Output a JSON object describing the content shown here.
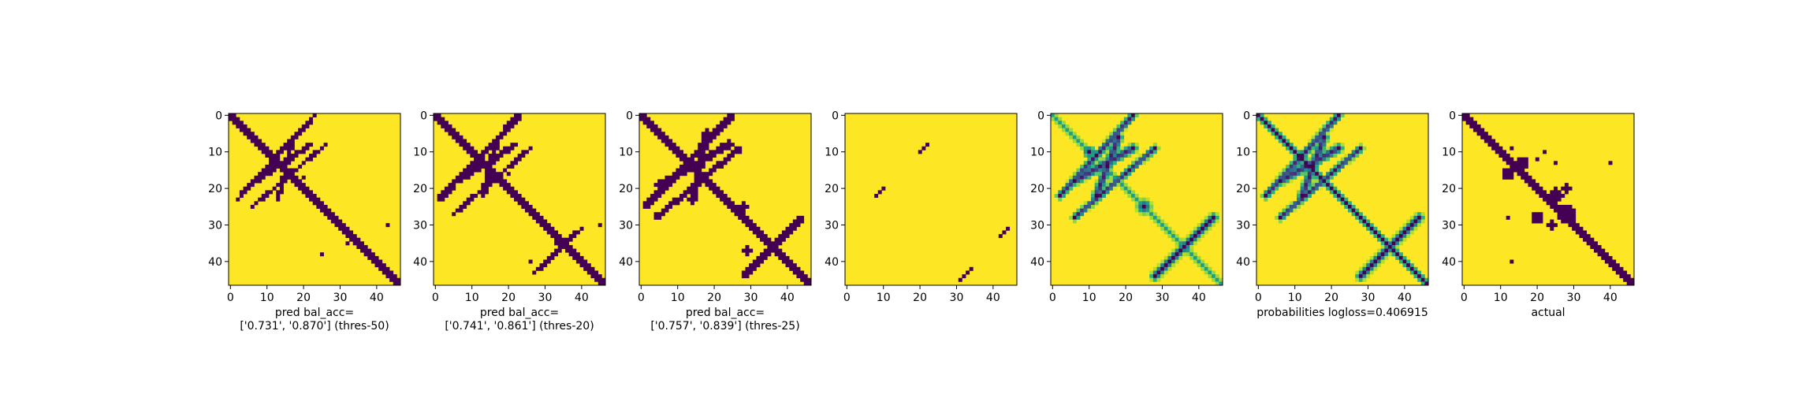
{
  "chart_data": [
    {
      "type": "heatmap",
      "name": "threshold-50-map",
      "caption": [
        "pred bal_acc=",
        "['0.731', '0.870'] (thres-50)"
      ],
      "size": 47,
      "render": "binary",
      "diag_width": 1.6,
      "curves": [
        [
          18,
          7,
          8,
          22,
          0,
          1.0
        ],
        [
          7,
          17,
          23,
          13,
          0,
          1.0
        ],
        [
          23,
          2,
          0,
          23,
          0,
          1.0
        ],
        [
          25,
          6,
          8,
          26,
          0,
          0.8
        ]
      ],
      "squares": [
        [
          38,
          25,
          1.5
        ],
        [
          35,
          32,
          1.5
        ],
        [
          30,
          43,
          1.5
        ],
        [
          17,
          20,
          1.5
        ]
      ],
      "xticks": [
        0,
        10,
        20,
        30,
        40
      ],
      "yticks": [
        0,
        10,
        20,
        30,
        40
      ]
    },
    {
      "type": "heatmap",
      "name": "threshold-20-map",
      "caption": [
        "pred bal_acc=",
        "['0.741', '0.861'] (thres-20)"
      ],
      "size": 47,
      "render": "binary",
      "diag_width": 1.7,
      "curves": [
        [
          18,
          6,
          8,
          22,
          0,
          1.3
        ],
        [
          6,
          17,
          22,
          13,
          0,
          1.3
        ],
        [
          23,
          1,
          0,
          23,
          0,
          1.3
        ],
        [
          27,
          5,
          9,
          26,
          0,
          1.0
        ],
        [
          43,
          27,
          31,
          40,
          0,
          1.0
        ]
      ],
      "squares": [
        [
          40,
          26,
          1.5
        ],
        [
          35,
          33,
          1.5
        ],
        [
          30,
          45,
          1.5
        ],
        [
          16,
          20,
          1.5
        ]
      ],
      "xticks": [
        0,
        10,
        20,
        30,
        40
      ],
      "yticks": [
        0,
        10,
        20,
        30,
        40
      ]
    },
    {
      "type": "heatmap",
      "name": "threshold-25-map",
      "caption": [
        "pred bal_acc=",
        "['0.757', '0.839'] (thres-25)"
      ],
      "size": 47,
      "render": "binary",
      "diag_width": 2.4,
      "curves": [
        [
          19,
          5,
          8,
          24,
          0,
          1.6
        ],
        [
          5,
          18,
          23,
          14,
          0,
          1.6
        ],
        [
          25,
          1,
          0,
          25,
          0,
          1.5
        ],
        [
          28,
          4,
          9,
          27,
          0,
          1.2
        ],
        [
          44,
          28,
          30,
          42,
          0,
          1.4
        ],
        [
          28,
          44,
          42,
          30,
          0,
          1.2
        ]
      ],
      "squares": [
        [
          37,
          29,
          2.0
        ],
        [
          35,
          35,
          2.0
        ],
        [
          25,
          28,
          2.0
        ]
      ],
      "xticks": [
        0,
        10,
        20,
        30,
        40
      ],
      "yticks": [
        0,
        10,
        20,
        30,
        40
      ]
    },
    {
      "type": "heatmap",
      "name": "sparse-map",
      "caption": [],
      "size": 47,
      "render": "binary",
      "diag_width": 0,
      "curves": [],
      "squares": [],
      "dots": [
        [
          20,
          10
        ],
        [
          21,
          9
        ],
        [
          22,
          8
        ],
        [
          8,
          22
        ],
        [
          9,
          21
        ],
        [
          10,
          20
        ],
        [
          31,
          44
        ],
        [
          32,
          43
        ],
        [
          33,
          42
        ],
        [
          42,
          34
        ],
        [
          43,
          33
        ],
        [
          44,
          32
        ],
        [
          45,
          31
        ]
      ],
      "xticks": [
        0,
        10,
        20,
        30,
        40
      ],
      "yticks": [
        0,
        10,
        20,
        30,
        40
      ]
    },
    {
      "type": "heatmap",
      "name": "smooth-map",
      "caption": [],
      "size": 47,
      "render": "continuous",
      "diag_width": 1.5,
      "diag_strength": 0.45,
      "curves": [
        [
          18,
          6,
          9,
          22,
          0,
          1.6
        ],
        [
          6,
          18,
          22,
          12,
          0,
          1.6
        ],
        [
          22,
          2,
          0,
          22,
          0,
          1.3
        ],
        [
          28,
          6,
          9,
          28,
          0,
          1.2
        ],
        [
          44,
          28,
          30,
          42,
          0,
          1.6
        ],
        [
          28,
          44,
          42,
          30,
          0,
          1.6
        ]
      ],
      "squares": [
        [
          25,
          25,
          2.5
        ],
        [
          10,
          10,
          2.0
        ]
      ],
      "xticks": [
        0,
        10,
        20,
        30,
        40
      ],
      "yticks": [
        0,
        10,
        20,
        30,
        40
      ]
    },
    {
      "type": "heatmap",
      "name": "probabilities-map",
      "caption": [
        "probabilities logloss=0.406915"
      ],
      "size": 47,
      "render": "continuous",
      "diag_width": 1.6,
      "diag_strength": 1.0,
      "curves": [
        [
          18,
          6,
          9,
          22,
          0,
          1.6
        ],
        [
          6,
          18,
          22,
          12,
          0,
          1.6
        ],
        [
          22,
          2,
          0,
          22,
          0,
          1.3
        ],
        [
          28,
          6,
          9,
          28,
          0,
          1.2
        ],
        [
          44,
          28,
          30,
          42,
          0,
          1.6
        ],
        [
          28,
          44,
          42,
          30,
          0,
          1.6
        ]
      ],
      "squares": [],
      "xticks": [
        0,
        10,
        20,
        30,
        40
      ],
      "yticks": [
        0,
        10,
        20,
        30,
        40
      ]
    },
    {
      "type": "heatmap",
      "name": "actual-map",
      "caption": [
        "actual"
      ],
      "size": 47,
      "render": "binary",
      "diag_width": 1.9,
      "curves": [],
      "squares": [
        [
          16,
          12,
          3.0
        ],
        [
          13,
          16,
          2.5
        ],
        [
          22,
          25,
          3.2
        ],
        [
          27,
          28,
          3.5
        ],
        [
          28,
          20,
          2.5
        ],
        [
          20,
          28,
          2.0
        ],
        [
          30,
          24,
          2.0
        ],
        [
          9,
          13,
          1.5
        ],
        [
          12,
          20,
          1.5
        ],
        [
          13,
          25,
          1.0
        ],
        [
          10,
          22,
          1.0
        ],
        [
          13,
          40,
          0.8
        ],
        [
          28,
          12,
          1.2
        ],
        [
          40,
          13,
          0.8
        ]
      ],
      "xticks": [
        0,
        10,
        20,
        30,
        40
      ],
      "yticks": [
        0,
        10,
        20,
        30,
        40
      ]
    }
  ],
  "colors": {
    "background": "#fde725",
    "contact": "#440154",
    "edge": "#000000"
  }
}
